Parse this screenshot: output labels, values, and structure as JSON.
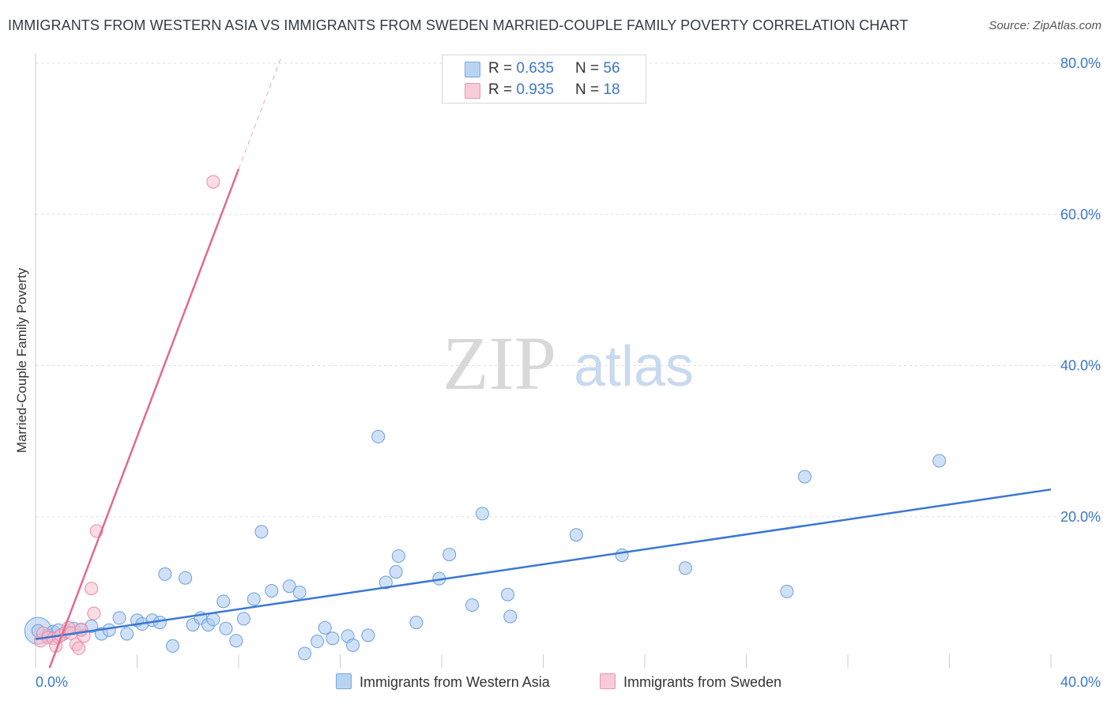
{
  "title": "IMMIGRANTS FROM WESTERN ASIA VS IMMIGRANTS FROM SWEDEN MARRIED-COUPLE FAMILY POVERTY CORRELATION CHART",
  "source": "Source: ZipAtlas.com",
  "watermark": {
    "zip": "ZIP",
    "atlas": "atlas"
  },
  "legend_top": [
    {
      "r_label": "R = ",
      "r_value": "0.635",
      "n_label": "N = ",
      "n_value": "56"
    },
    {
      "r_label": "R = ",
      "r_value": "0.935",
      "n_label": "N = ",
      "n_value": "18"
    }
  ],
  "colors": {
    "blue_fill": "#a9c8f0",
    "blue_stroke": "#6a9fdc",
    "blue_line": "#3a78d0",
    "pink_fill": "#f6bfd0",
    "pink_stroke": "#e98aa8",
    "pink_line": "#e06a93",
    "tick_label": "#3a78c8",
    "grid": "#dddddd"
  },
  "chart_data": {
    "type": "scatter",
    "title": "IMMIGRANTS FROM WESTERN ASIA VS IMMIGRANTS FROM SWEDEN MARRIED-COUPLE FAMILY POVERTY CORRELATION CHART",
    "xlabel": "",
    "ylabel": "Married-Couple Family Poverty",
    "xlim": [
      0,
      40
    ],
    "ylim": [
      0,
      80
    ],
    "x_tick_labels": [
      "0.0%",
      "40.0%"
    ],
    "y_ticks": [
      20,
      40,
      60,
      80
    ],
    "y_tick_labels": [
      "20.0%",
      "40.0%",
      "60.0%",
      "80.0%"
    ],
    "grid": "horizontal dashed",
    "legend_position": "top-center and bottom",
    "series": [
      {
        "name": "Immigrants from Western Asia",
        "color": "blue",
        "points": [
          [
            0.1,
            4.9
          ],
          [
            0.5,
            4.3
          ],
          [
            0.7,
            4.8
          ],
          [
            0.9,
            5.0
          ],
          [
            1.1,
            4.5
          ],
          [
            1.5,
            5.2
          ],
          [
            1.8,
            5.0
          ],
          [
            2.2,
            5.5
          ],
          [
            2.6,
            4.5
          ],
          [
            2.9,
            5.0
          ],
          [
            3.3,
            6.6
          ],
          [
            3.6,
            4.5
          ],
          [
            4.0,
            6.3
          ],
          [
            4.2,
            5.8
          ],
          [
            4.6,
            6.3
          ],
          [
            4.9,
            6.0
          ],
          [
            5.1,
            12.4
          ],
          [
            5.4,
            2.9
          ],
          [
            5.9,
            11.9
          ],
          [
            6.2,
            5.7
          ],
          [
            6.5,
            6.6
          ],
          [
            6.8,
            5.7
          ],
          [
            7.0,
            6.4
          ],
          [
            7.4,
            8.8
          ],
          [
            7.5,
            5.2
          ],
          [
            7.9,
            3.6
          ],
          [
            8.2,
            6.5
          ],
          [
            8.6,
            9.1
          ],
          [
            8.9,
            18.0
          ],
          [
            9.3,
            10.2
          ],
          [
            10.0,
            10.8
          ],
          [
            10.4,
            10.0
          ],
          [
            10.6,
            1.9
          ],
          [
            11.1,
            3.5
          ],
          [
            11.4,
            5.3
          ],
          [
            11.7,
            3.9
          ],
          [
            12.3,
            4.2
          ],
          [
            12.5,
            3.0
          ],
          [
            13.1,
            4.3
          ],
          [
            13.5,
            30.6
          ],
          [
            13.8,
            11.3
          ],
          [
            14.2,
            12.7
          ],
          [
            14.3,
            14.8
          ],
          [
            15.0,
            6.0
          ],
          [
            15.9,
            11.8
          ],
          [
            16.3,
            15.0
          ],
          [
            17.2,
            8.3
          ],
          [
            17.6,
            20.4
          ],
          [
            18.6,
            9.7
          ],
          [
            18.7,
            6.8
          ],
          [
            21.3,
            17.6
          ],
          [
            23.1,
            14.9
          ],
          [
            25.6,
            13.2
          ],
          [
            29.6,
            10.1
          ],
          [
            30.3,
            25.3
          ],
          [
            35.6,
            27.4
          ]
        ],
        "trendline": {
          "x": [
            0.0,
            40.0
          ],
          "y": [
            3.8,
            23.6
          ]
        }
      },
      {
        "name": "Immigrants from Sweden",
        "color": "pink",
        "points": [
          [
            0.2,
            3.6
          ],
          [
            0.3,
            4.6
          ],
          [
            0.5,
            4.0
          ],
          [
            0.7,
            3.9
          ],
          [
            0.8,
            2.9
          ],
          [
            0.9,
            4.1
          ],
          [
            1.0,
            4.3
          ],
          [
            1.2,
            4.8
          ],
          [
            1.3,
            5.3
          ],
          [
            1.4,
            4.6
          ],
          [
            1.6,
            3.1
          ],
          [
            1.7,
            2.6
          ],
          [
            1.8,
            5.1
          ],
          [
            1.9,
            4.2
          ],
          [
            2.2,
            10.5
          ],
          [
            2.3,
            7.2
          ],
          [
            2.4,
            18.1
          ],
          [
            7.0,
            64.3
          ]
        ],
        "trendline": {
          "x": [
            0.55,
            8.0
          ],
          "y": [
            0.0,
            66.0
          ]
        },
        "trendline_extension": {
          "x": [
            8.0,
            9.7
          ],
          "y": [
            66.0,
            81.0
          ]
        }
      }
    ]
  },
  "legend_bottom": [
    {
      "label": "Immigrants from Western Asia",
      "color": "blue"
    },
    {
      "label": "Immigrants from Sweden",
      "color": "pink"
    }
  ]
}
